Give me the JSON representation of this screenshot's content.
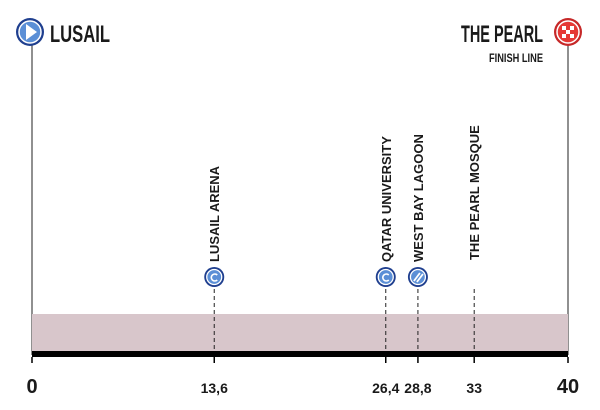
{
  "chart_data": {
    "type": "profile",
    "start": "LUSAIL",
    "finish": "THE PEARL",
    "finish_note": "FINISH LINE",
    "xlim": [
      0,
      40
    ],
    "xticks": [
      0,
      {
        "value": 13.6,
        "label": "13,6"
      },
      {
        "value": 26.4,
        "label": "26,4"
      },
      {
        "value": 28.8,
        "label": "28,8"
      },
      33,
      40
    ],
    "points": [
      {
        "name": "LUSAIL ARENA",
        "km": 13.6
      },
      {
        "name": "QATAR UNIVERSITY",
        "km": 26.4
      },
      {
        "name": "WEST BAY LAGOON",
        "km": 28.8
      },
      {
        "name": "THE PEARL MOSQUE",
        "km": 33
      }
    ],
    "color": "#d8c6cb"
  }
}
